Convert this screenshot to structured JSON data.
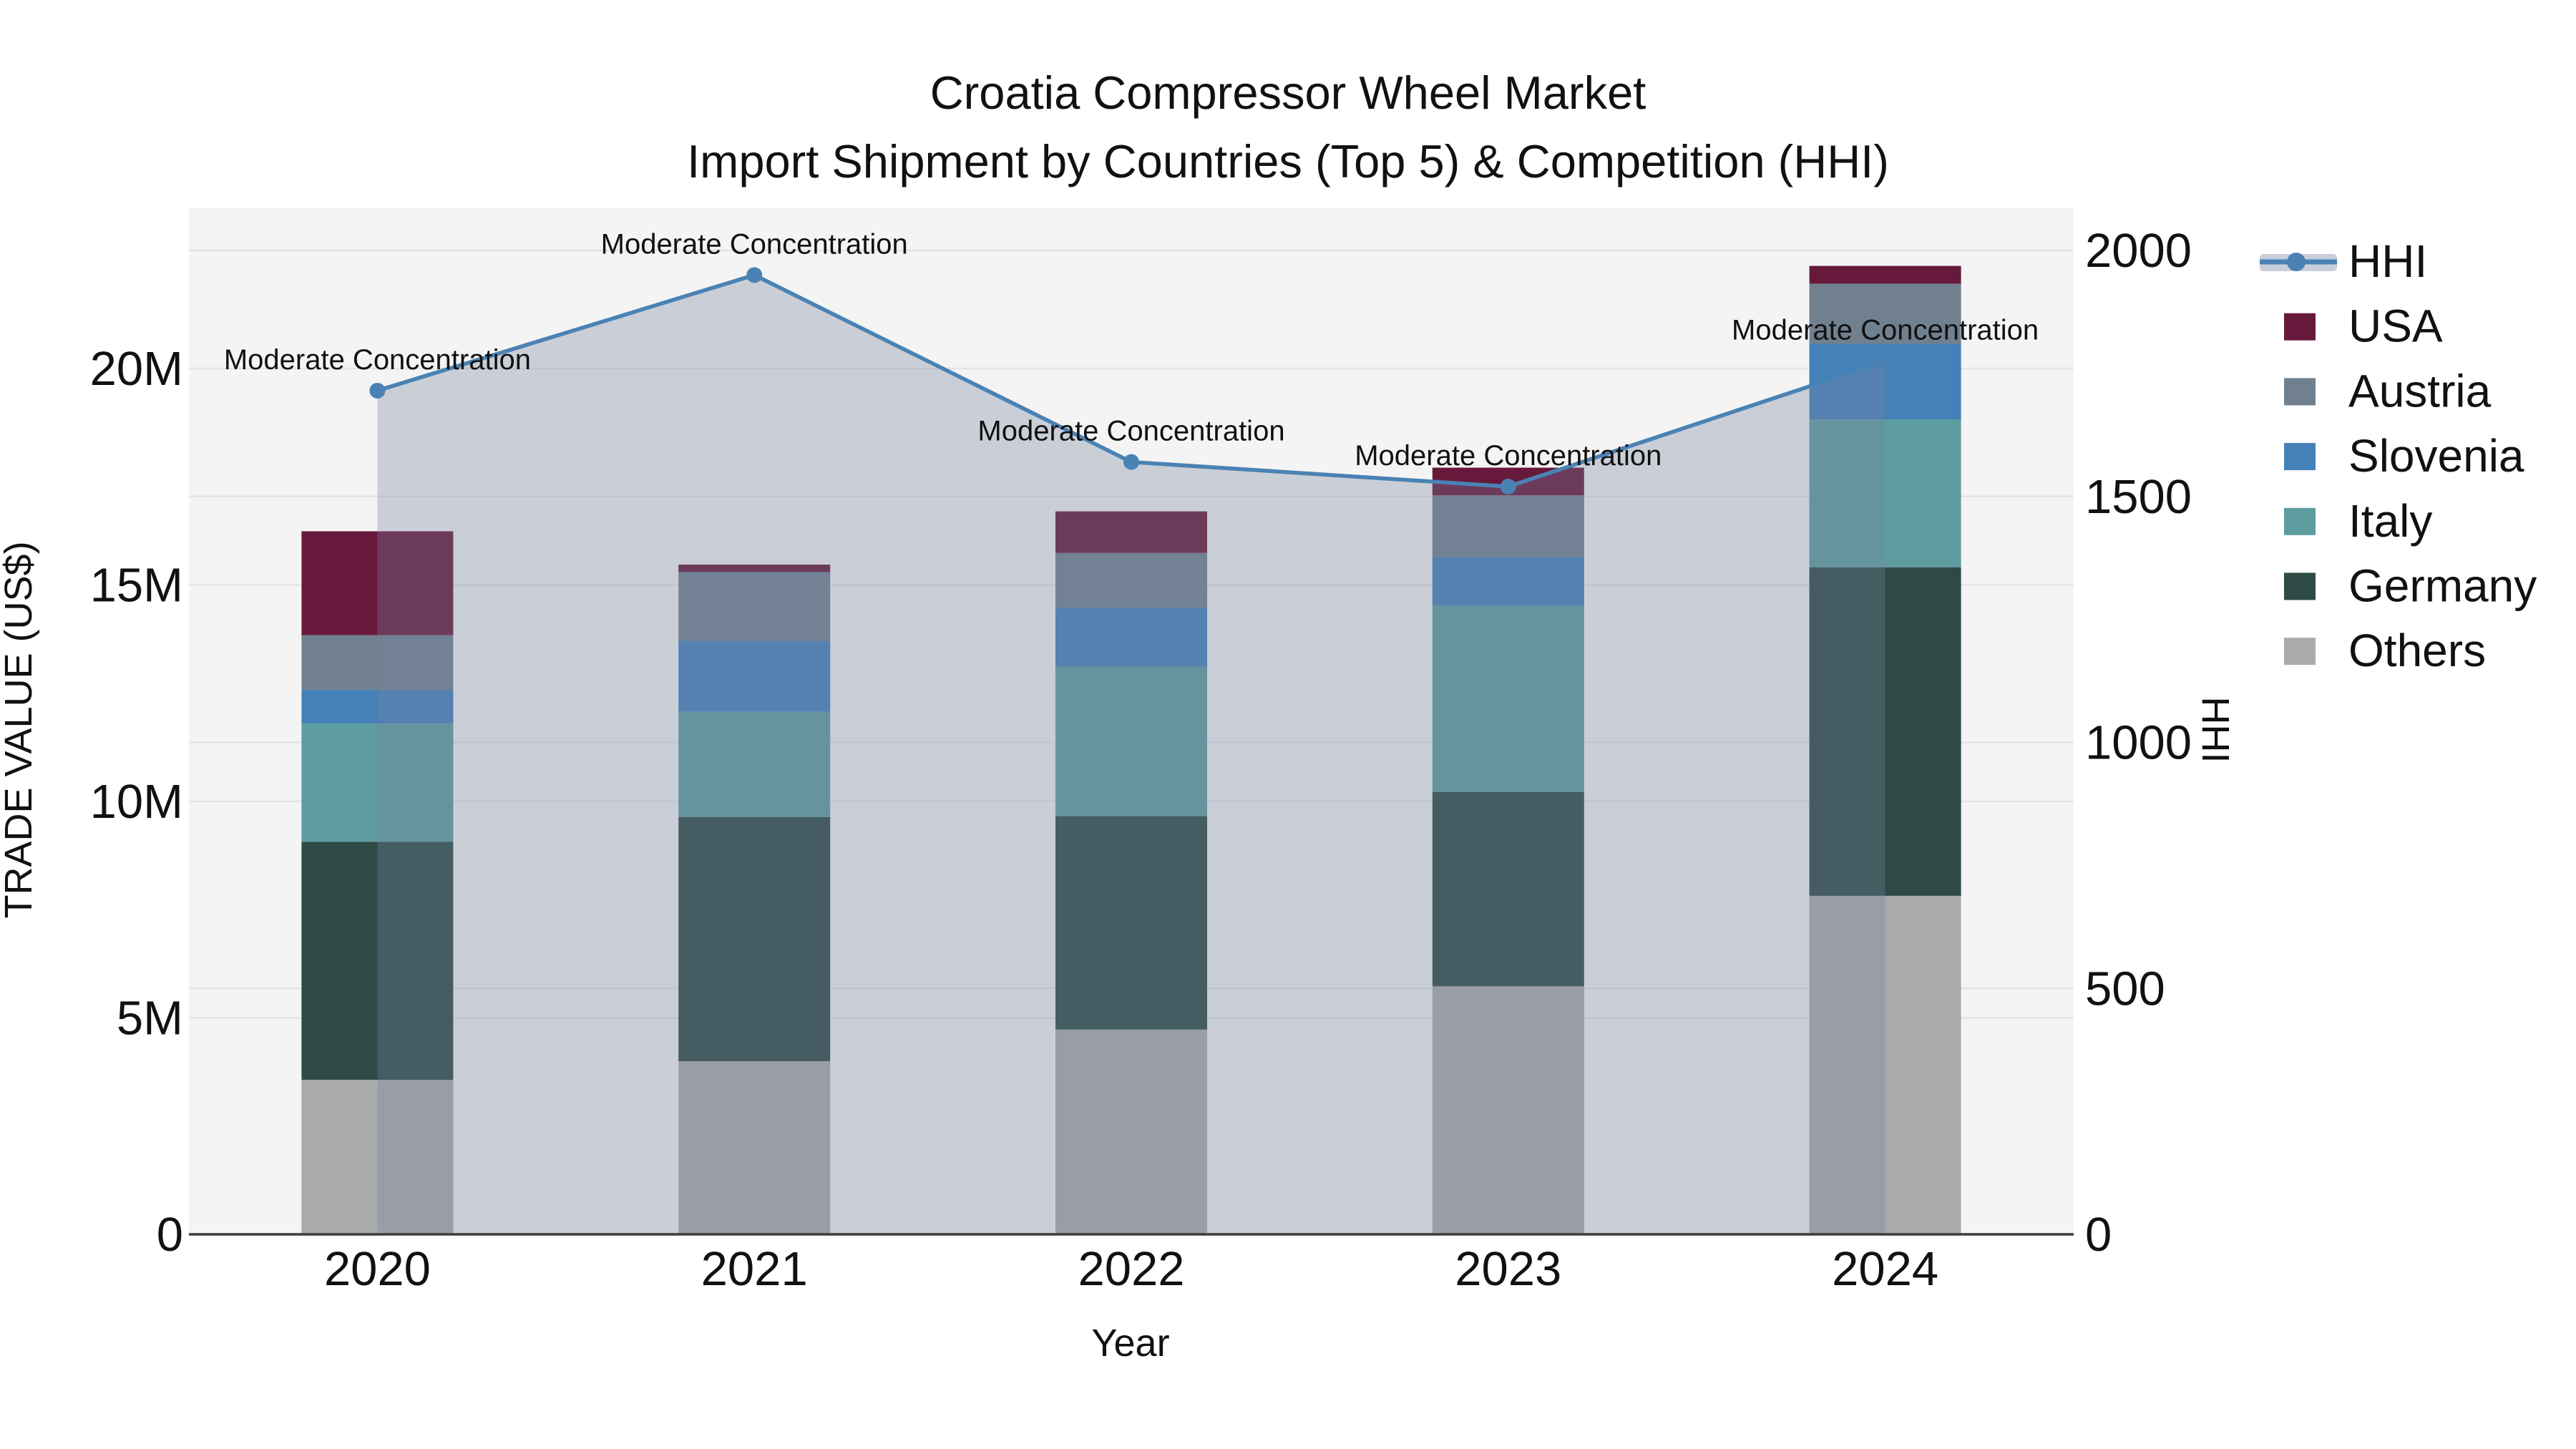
{
  "title": {
    "line1": "Croatia Compressor Wheel Market",
    "line2": "Import Shipment by Countries (Top 5) & Competition (HHI)"
  },
  "axes": {
    "left": {
      "title": "TRADE VALUE (US$)",
      "ticks": [
        {
          "label": "0",
          "value": 0
        },
        {
          "label": "5M",
          "value": 5
        },
        {
          "label": "10M",
          "value": 10
        },
        {
          "label": "15M",
          "value": 15
        },
        {
          "label": "20M",
          "value": 20
        }
      ]
    },
    "right": {
      "title": "HHI",
      "ticks": [
        {
          "label": "0",
          "value": 0
        },
        {
          "label": "500",
          "value": 500
        },
        {
          "label": "1000",
          "value": 1000
        },
        {
          "label": "1500",
          "value": 1500
        },
        {
          "label": "2000",
          "value": 2000
        }
      ]
    },
    "x": {
      "title": "Year",
      "categories": [
        "2020",
        "2021",
        "2022",
        "2023",
        "2024"
      ]
    }
  },
  "legend": {
    "items": [
      {
        "label": "HHI",
        "type": "line",
        "color": "#4A82B4"
      },
      {
        "label": "USA",
        "type": "swatch",
        "color": "#67193B"
      },
      {
        "label": "Austria",
        "type": "swatch",
        "color": "#71808F"
      },
      {
        "label": "Slovenia",
        "type": "swatch",
        "color": "#4381B8"
      },
      {
        "label": "Italy",
        "type": "swatch",
        "color": "#5D9DA0"
      },
      {
        "label": "Germany",
        "type": "swatch",
        "color": "#2E4A46"
      },
      {
        "label": "Others",
        "type": "swatch",
        "color": "#A9AAAB"
      }
    ]
  },
  "colors": {
    "plot_bg": "#F4F4F4",
    "grid": "#E3E4E6",
    "axis_line": "#3C3C3C",
    "hhi_line": "#4A82B4",
    "hhi_area": "rgba(118,130,157,0.33)",
    "legend_band": "#C9CEDA",
    "text": "#111111"
  },
  "chart_data": [
    {
      "type": "bar",
      "stacked": true,
      "title": "Croatia Compressor Wheel Market — Import Shipment by Countries (Top 5) & Competition (HHI)",
      "xlabel": "Year",
      "ylabel": "TRADE VALUE (US$)",
      "y_unit": "million US$",
      "ylim_millions": [
        0,
        23.7
      ],
      "grid": true,
      "legend_position": "right",
      "categories": [
        "2020",
        "2021",
        "2022",
        "2023",
        "2024"
      ],
      "stack_order_bottom_to_top": [
        "Others",
        "Germany",
        "Italy",
        "Slovenia",
        "Austria",
        "USA"
      ],
      "series": [
        {
          "name": "USA",
          "color": "#67193B",
          "values": [
            2.4,
            0.17,
            0.96,
            0.64,
            0.41
          ]
        },
        {
          "name": "Austria",
          "color": "#71808F",
          "values": [
            1.26,
            1.59,
            1.27,
            1.42,
            1.39
          ]
        },
        {
          "name": "Slovenia",
          "color": "#4381B8",
          "values": [
            0.78,
            1.64,
            1.36,
            1.12,
            1.75
          ]
        },
        {
          "name": "Italy",
          "color": "#5D9DA0",
          "values": [
            2.73,
            2.43,
            3.45,
            4.31,
            3.41
          ]
        },
        {
          "name": "Germany",
          "color": "#2E4A46",
          "values": [
            5.5,
            5.64,
            4.93,
            4.49,
            7.59
          ]
        },
        {
          "name": "Others",
          "color": "#A9AAAB",
          "values": [
            3.57,
            4.0,
            4.73,
            5.73,
            7.82
          ]
        }
      ],
      "totals_millions": [
        16.24,
        15.47,
        16.7,
        17.71,
        22.37
      ]
    },
    {
      "type": "line",
      "name": "HHI",
      "axis": "right",
      "color": "#4A82B4",
      "x": [
        "2020",
        "2021",
        "2022",
        "2023",
        "2024"
      ],
      "values": [
        1715,
        1950,
        1570,
        1520,
        1775
      ],
      "ylim": [
        0,
        2085
      ],
      "annotation_text": "Moderate Concentration",
      "annotated_points": [
        "2020",
        "2021",
        "2022",
        "2023",
        "2024"
      ]
    }
  ]
}
